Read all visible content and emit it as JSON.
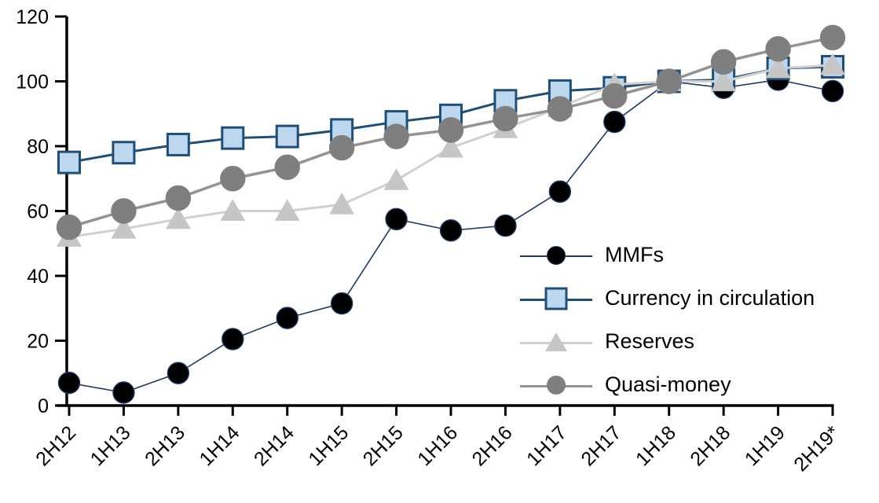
{
  "chart_data": {
    "type": "line",
    "title": "",
    "xlabel": "",
    "ylabel": "",
    "ylim": [
      0,
      120
    ],
    "yticks": [
      0,
      20,
      40,
      60,
      80,
      100,
      120
    ],
    "grid": false,
    "legend_position": "inside-right",
    "axis_color": "#000000",
    "background_color": "#ffffff",
    "categories": [
      "2H12",
      "1H13",
      "2H13",
      "1H14",
      "2H14",
      "1H15",
      "2H15",
      "1H16",
      "2H16",
      "1H17",
      "2H17",
      "1H18",
      "2H18",
      "1H19",
      "2H19*"
    ],
    "series": [
      {
        "name": "MMFs",
        "marker": "circle",
        "marker_fill": "#000000",
        "marker_stroke": "#1F3864",
        "line_color": "#1F3864",
        "line_width": 1.6,
        "marker_size": 27,
        "values": [
          7,
          4,
          10,
          20.5,
          27,
          31.5,
          57.5,
          54,
          55.5,
          66,
          87.5,
          100,
          98,
          100.5,
          97
        ]
      },
      {
        "name": "Currency in circulation",
        "marker": "square",
        "marker_fill": "#BDD7EE",
        "marker_stroke": "#1F4E79",
        "line_color": "#1F4E79",
        "line_width": 3,
        "marker_size": 27,
        "values": [
          75,
          78,
          80.5,
          82.5,
          83,
          85,
          87.5,
          89.5,
          94,
          97,
          98,
          100,
          100.5,
          104,
          104.5
        ]
      },
      {
        "name": "Reserves",
        "marker": "triangle",
        "marker_fill": "#C6C6C6",
        "marker_stroke": "#C6C6C6",
        "line_color": "#D0D0D0",
        "line_width": 3,
        "marker_size": 32,
        "values": [
          52,
          54.5,
          57.5,
          60,
          60,
          62,
          69.5,
          79.5,
          85.5,
          92,
          99,
          100,
          100,
          104,
          105
        ]
      },
      {
        "name": "Quasi-money",
        "marker": "circle",
        "marker_fill": "#7F7F7F",
        "marker_stroke": "#7F7F7F",
        "line_color": "#939393",
        "line_width": 3.5,
        "marker_size": 31,
        "values": [
          55,
          60,
          64,
          70,
          73.5,
          79.5,
          83,
          85,
          88.5,
          91.5,
          95.5,
          100,
          106,
          110,
          113.5
        ]
      }
    ]
  }
}
